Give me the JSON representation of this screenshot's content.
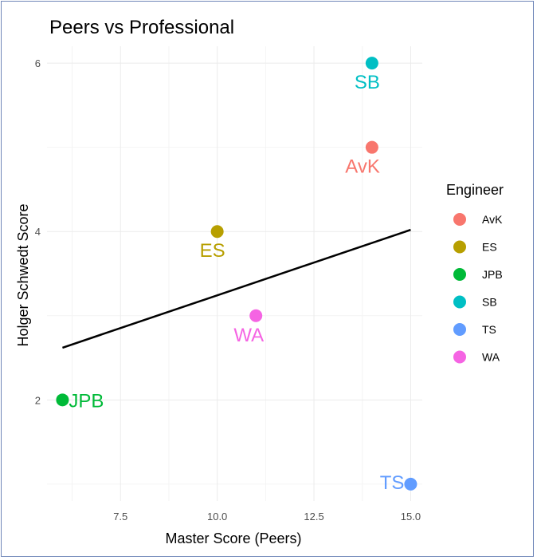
{
  "chart_data": {
    "type": "scatter",
    "title": "Peers vs Professional",
    "xlabel": "Master Score (Peers)",
    "ylabel": "Holger Schwedt Score",
    "xlim": [
      5.6,
      15.3
    ],
    "ylim": [
      0.8,
      6.2
    ],
    "x_ticks": [
      7.5,
      10.0,
      12.5,
      15.0
    ],
    "x_tick_labels": [
      "7.5",
      "10.0",
      "12.5",
      "15.0"
    ],
    "y_ticks": [
      2,
      4,
      6
    ],
    "y_tick_labels": [
      "2",
      "4",
      "6"
    ],
    "grid": true,
    "legend_title": "Engineer",
    "legend_position": "right",
    "points": [
      {
        "label": "AvK",
        "x": 14,
        "y": 5,
        "color": "#f8766d"
      },
      {
        "label": "ES",
        "x": 10,
        "y": 4,
        "color": "#b79f00"
      },
      {
        "label": "JPB",
        "x": 6,
        "y": 2,
        "color": "#00ba38"
      },
      {
        "label": "SB",
        "x": 14,
        "y": 6,
        "color": "#00bfc4"
      },
      {
        "label": "TS",
        "x": 15,
        "y": 1,
        "color": "#619cff"
      },
      {
        "label": "WA",
        "x": 11,
        "y": 3,
        "color": "#f564e3"
      }
    ],
    "fit_line": {
      "x_start": 6,
      "y_start": 2.62,
      "x_end": 15,
      "y_end": 4.02,
      "color": "#000000"
    }
  }
}
